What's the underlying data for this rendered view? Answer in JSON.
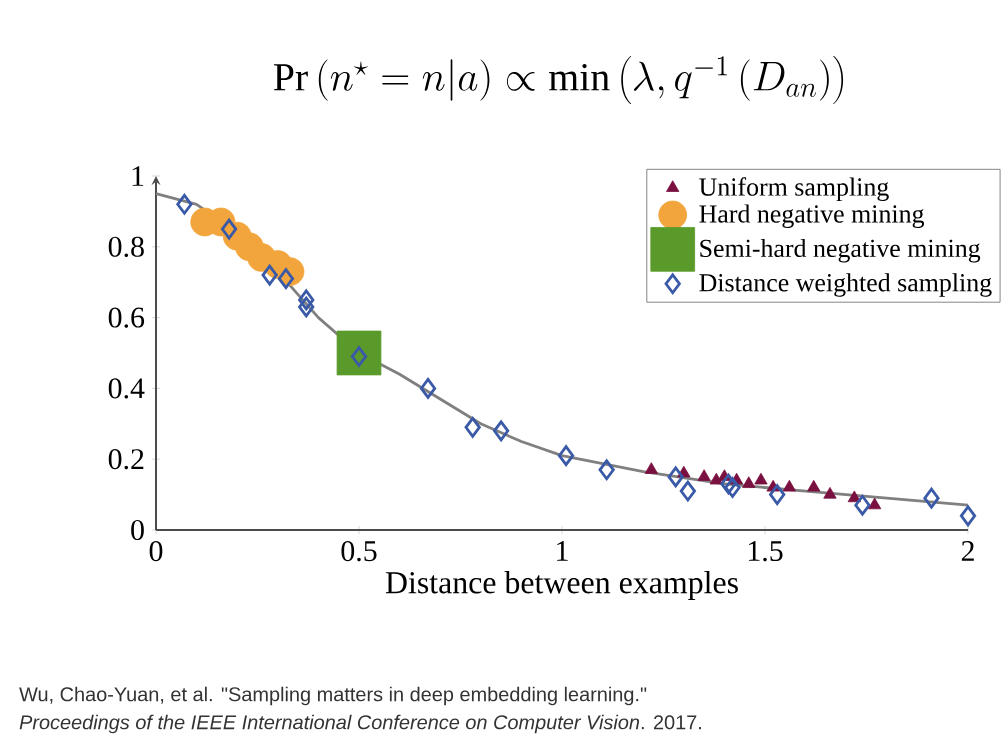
{
  "chart_data": {
    "type": "scatter",
    "title": "\\Pr\\left(n^{\\star}=n|a\\right)\\propto\\min\\left(\\lambda,q^{-1}\\left(D_{an}\\right)\\right)",
    "xlabel": "Distance between examples",
    "annotations": [
      "Wu, Chao-Yuan, et al. \"Sampling matters in deep embedding learning.\"",
      "*Proceedings of the IEEE International Conference on Computer Vision*. 2017."
    ],
    "xlim": [
      0,
      2
    ],
    "ylim": [
      0,
      1
    ],
    "xticks": [
      0,
      0.5,
      1,
      1.5,
      2
    ],
    "yticks": [
      0,
      0.2,
      0.4,
      0.6,
      0.8,
      1
    ],
    "legend": "top right",
    "series": [
      {
        "type": "line",
        "marker": "none",
        "color": "#808080",
        "x": [
          0,
          0.1,
          0.2,
          0.3,
          0.4,
          0.5,
          0.6,
          0.7,
          0.8,
          0.9,
          1.0,
          1.2,
          1.4,
          1.6,
          1.8,
          2.0
        ],
        "values": [
          0.95,
          0.92,
          0.84,
          0.73,
          0.6,
          0.5,
          0.44,
          0.37,
          0.3,
          0.25,
          0.21,
          0.165,
          0.13,
          0.11,
          0.09,
          0.07
        ]
      },
      {
        "name": "Uniform sampling",
        "marker": "triangle",
        "color": "#7a1040",
        "x": [
          1.22,
          1.3,
          1.35,
          1.38,
          1.4,
          1.43,
          1.46,
          1.49,
          1.52,
          1.56,
          1.62,
          1.66,
          1.72,
          1.77
        ],
        "values": [
          0.17,
          0.16,
          0.15,
          0.14,
          0.15,
          0.14,
          0.13,
          0.14,
          0.12,
          0.12,
          0.12,
          0.1,
          0.09,
          0.07
        ]
      },
      {
        "name": "Hard negative mining",
        "marker": "circle",
        "color": "#f2a53c",
        "x": [
          0.12,
          0.16,
          0.2,
          0.23,
          0.26,
          0.3,
          0.33
        ],
        "values": [
          0.87,
          0.87,
          0.83,
          0.8,
          0.77,
          0.75,
          0.73
        ]
      },
      {
        "name": "Semi-hard negative mining",
        "marker": "square",
        "color": "#5a9a2a",
        "x": [
          0.5
        ],
        "values": [
          0.5
        ]
      },
      {
        "name": "Distance weighted sampling",
        "marker": "diamond",
        "color": "#3a5aa8",
        "x": [
          0.07,
          0.18,
          0.28,
          0.32,
          0.37,
          0.37,
          0.5,
          0.67,
          0.78,
          0.85,
          1.01,
          1.11,
          1.28,
          1.31,
          1.41,
          1.42,
          1.53,
          1.74,
          1.91,
          2.0
        ],
        "values": [
          0.92,
          0.85,
          0.72,
          0.71,
          0.65,
          0.63,
          0.49,
          0.4,
          0.29,
          0.28,
          0.21,
          0.17,
          0.15,
          0.11,
          0.13,
          0.12,
          0.1,
          0.07,
          0.09,
          0.04
        ]
      }
    ]
  }
}
